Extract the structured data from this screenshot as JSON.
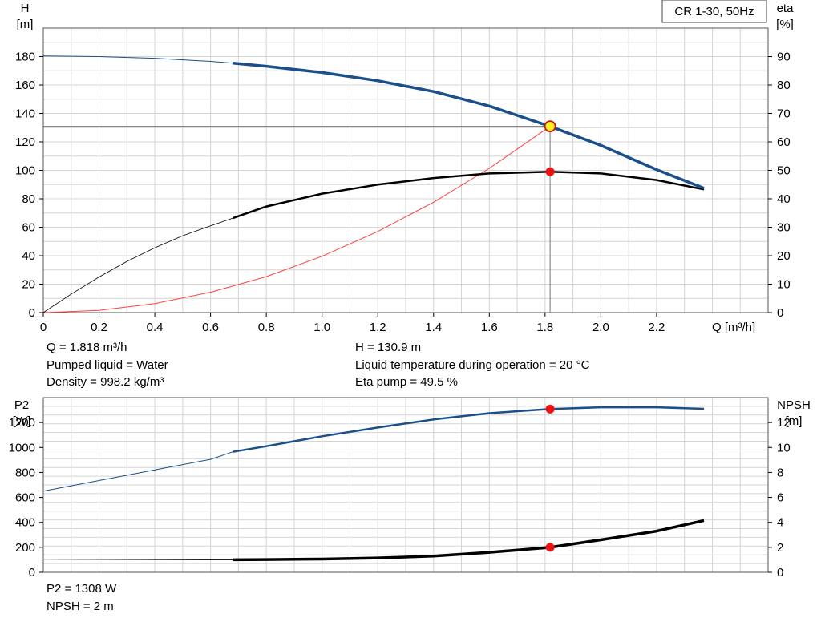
{
  "chart_data": [
    {
      "type": "line",
      "legend_box": "CR 1-30, 50Hz",
      "xlabel": "Q [m³/h]",
      "ylabel_left": [
        "H",
        "[m]"
      ],
      "ylabel_right": [
        "eta",
        "[%]"
      ],
      "xlim": [
        0,
        2.6
      ],
      "ylim_left": [
        0,
        200
      ],
      "ylim_right": [
        0,
        100
      ],
      "x_ticks": [
        "0",
        "0.2",
        "0.4",
        "0.6",
        "0.8",
        "1.0",
        "1.2",
        "1.4",
        "1.6",
        "1.8",
        "2.0",
        "2.2"
      ],
      "y_ticks_left": [
        "0",
        "20",
        "40",
        "60",
        "80",
        "100",
        "120",
        "140",
        "160",
        "180"
      ],
      "y_ticks_right": [
        "0",
        "10",
        "20",
        "30",
        "40",
        "50",
        "60",
        "70",
        "80",
        "90"
      ],
      "grid": true,
      "series": [
        {
          "axis": "left",
          "color": "#1a4f8a",
          "thin": [
            [
              0,
              180.4
            ],
            [
              0.2,
              180
            ],
            [
              0.4,
              178.8
            ],
            [
              0.6,
              176.6
            ],
            [
              0.68,
              175.4
            ]
          ],
          "thick": [
            [
              0.68,
              175.4
            ],
            [
              0.8,
              173.2
            ],
            [
              1.0,
              168.8
            ],
            [
              1.2,
              163
            ],
            [
              1.4,
              155.4
            ],
            [
              1.6,
              145.2
            ],
            [
              1.818,
              130.9
            ],
            [
              2.0,
              117.5
            ],
            [
              2.2,
              100.5
            ],
            [
              2.37,
              87.5
            ]
          ]
        },
        {
          "axis": "right",
          "color": "#000000",
          "thin": [
            [
              0,
              0
            ],
            [
              0.1,
              6.5
            ],
            [
              0.2,
              12.5
            ],
            [
              0.3,
              18
            ],
            [
              0.4,
              22.8
            ],
            [
              0.5,
              27
            ],
            [
              0.6,
              30.5
            ],
            [
              0.68,
              33.2
            ]
          ],
          "thick": [
            [
              0.68,
              33.2
            ],
            [
              0.8,
              37.3
            ],
            [
              1.0,
              41.8
            ],
            [
              1.2,
              45
            ],
            [
              1.4,
              47.3
            ],
            [
              1.6,
              48.9
            ],
            [
              1.818,
              49.5
            ],
            [
              2.0,
              48.9
            ],
            [
              2.2,
              46.6
            ],
            [
              2.37,
              43.3
            ]
          ]
        },
        {
          "axis": "left",
          "color": "#ff4040",
          "role": "system curve",
          "thin": [
            [
              0,
              0
            ],
            [
              0.2,
              1.6
            ],
            [
              0.4,
              6.3
            ],
            [
              0.6,
              14.3
            ],
            [
              0.8,
              25.3
            ],
            [
              1.0,
              39.6
            ],
            [
              1.2,
              57
            ],
            [
              1.4,
              77.6
            ],
            [
              1.6,
              101.4
            ],
            [
              1.818,
              130.9
            ]
          ]
        }
      ],
      "operating_point": {
        "x": 1.818,
        "h": 130.9,
        "eta": 49.5
      }
    },
    {
      "type": "line",
      "ylabel_left": [
        "P2",
        "[W]"
      ],
      "ylabel_right": [
        "NPSH",
        "[m]"
      ],
      "xlim": [
        0,
        2.6
      ],
      "ylim_left": [
        0,
        1400
      ],
      "ylim_right": [
        0,
        14
      ],
      "y_ticks_left": [
        "0",
        "200",
        "400",
        "600",
        "800",
        "1000",
        "1200"
      ],
      "y_ticks_right": [
        "0",
        "2",
        "4",
        "6",
        "8",
        "10",
        "12"
      ],
      "grid": true,
      "series": [
        {
          "axis": "left",
          "color": "#1a4f8a",
          "thin": [
            [
              0,
              650
            ],
            [
              0.2,
              735
            ],
            [
              0.4,
              820
            ],
            [
              0.6,
              905
            ],
            [
              0.68,
              965
            ]
          ],
          "thick": [
            [
              0.68,
              965
            ],
            [
              0.8,
              1010
            ],
            [
              1.0,
              1090
            ],
            [
              1.2,
              1160
            ],
            [
              1.4,
              1225
            ],
            [
              1.6,
              1275
            ],
            [
              1.818,
              1308
            ],
            [
              2.0,
              1322
            ],
            [
              2.2,
              1322
            ],
            [
              2.37,
              1310
            ]
          ]
        },
        {
          "axis": "right",
          "color": "#000000",
          "thin": [
            [
              0,
              1.05
            ],
            [
              0.3,
              1.03
            ],
            [
              0.6,
              1.0
            ],
            [
              0.68,
              1.0
            ]
          ],
          "thick": [
            [
              0.68,
              1.0
            ],
            [
              0.8,
              1.02
            ],
            [
              1.0,
              1.06
            ],
            [
              1.2,
              1.15
            ],
            [
              1.4,
              1.3
            ],
            [
              1.6,
              1.6
            ],
            [
              1.818,
              2.0
            ],
            [
              2.0,
              2.6
            ],
            [
              2.2,
              3.3
            ],
            [
              2.37,
              4.15
            ]
          ]
        }
      ],
      "operating_point": {
        "x": 1.818,
        "p2": 1308,
        "npsh": 2
      }
    }
  ],
  "info": {
    "q": "Q = 1.818 m³/h",
    "liquid": "Pumped liquid = Water",
    "density": "Density = 998.2 kg/m³",
    "h": "H = 130.9 m",
    "temp": "Liquid temperature during operation = 20 °C",
    "eta": "Eta pump = 49.5 %",
    "p2": "P2 = 1308 W",
    "npsh": "NPSH = 2 m"
  }
}
